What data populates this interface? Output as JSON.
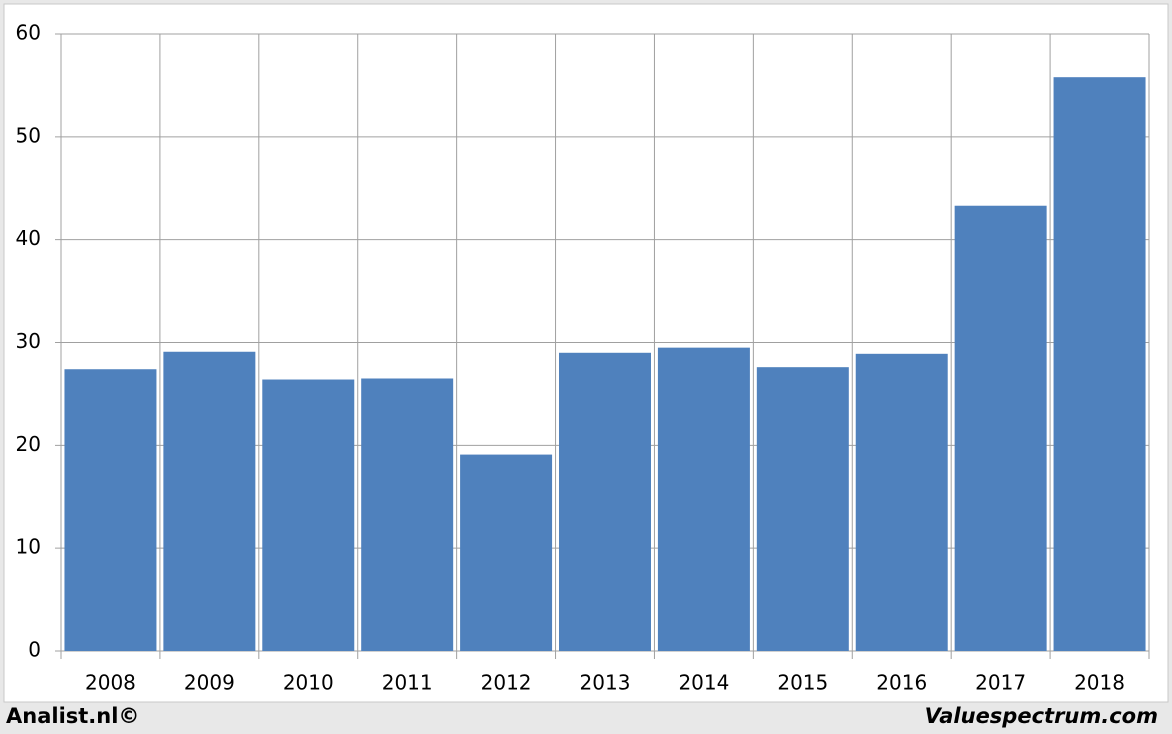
{
  "chart_data": {
    "type": "bar",
    "categories": [
      "2008",
      "2009",
      "2010",
      "2011",
      "2012",
      "2013",
      "2014",
      "2015",
      "2016",
      "2017",
      "2018"
    ],
    "values": [
      27.4,
      29.1,
      26.4,
      26.5,
      19.1,
      29.0,
      29.5,
      27.6,
      28.9,
      43.3,
      55.8
    ],
    "color": "#4f81bd",
    "ylim": [
      0,
      60
    ],
    "yticks": [
      0,
      10,
      20,
      30,
      40,
      50,
      60
    ],
    "grid": true
  },
  "footer": {
    "left": "Analist.nl©",
    "right": "Valuespectrum.com"
  }
}
